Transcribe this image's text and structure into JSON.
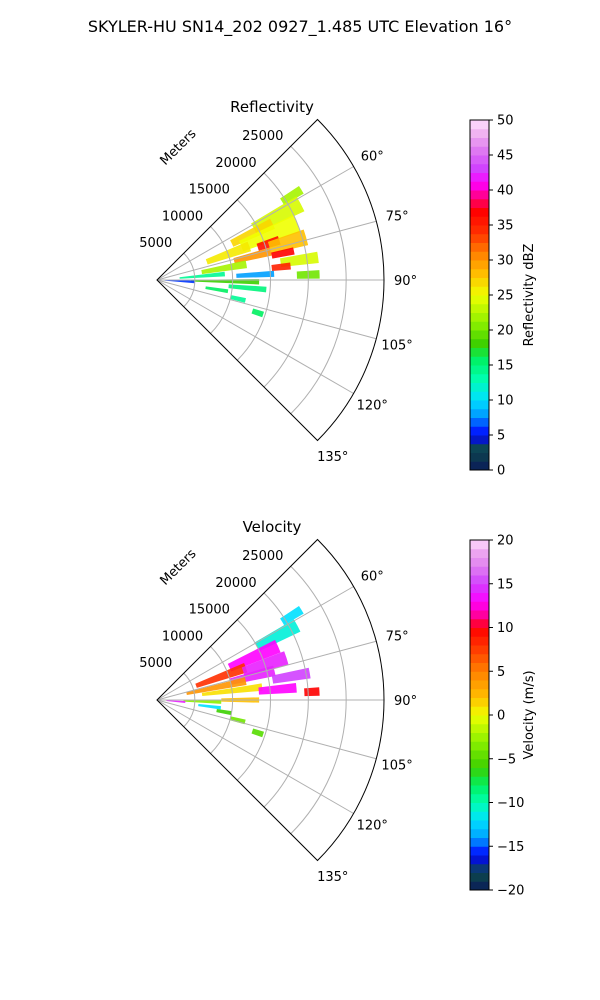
{
  "figure": {
    "title": "SKYLER-HU  SN14_202  0927_1.485 UTC Elevation 16°"
  },
  "chart_data": [
    {
      "type": "polar-sector",
      "title": "Reflectivity",
      "range_label": "Meters",
      "theta_range_deg": [
        45,
        135
      ],
      "theta_ticks": [
        "60°",
        "75°",
        "90°",
        "105°",
        "120°",
        "135°"
      ],
      "theta_tick_values": [
        60,
        75,
        90,
        105,
        120,
        135
      ],
      "r_ticks": [
        "5000",
        "10000",
        "15000",
        "20000",
        "25000"
      ],
      "r_tick_values": [
        5000,
        10000,
        15000,
        20000,
        25000
      ],
      "rlim": [
        0,
        30000
      ],
      "grid": true,
      "colorbar": {
        "label": "Reflectivity dBZ",
        "range": [
          0,
          50
        ],
        "ticks": [
          "0",
          "5",
          "10",
          "15",
          "20",
          "25",
          "30",
          "35",
          "40",
          "45",
          "50"
        ],
        "tick_values": [
          0,
          5,
          10,
          15,
          20,
          25,
          30,
          35,
          40,
          45,
          50
        ],
        "stops": [
          [
            0,
            "#0a1a5a"
          ],
          [
            3,
            "#0d4a4a"
          ],
          [
            5,
            "#0000ff"
          ],
          [
            8,
            "#00a0ff"
          ],
          [
            10,
            "#00e0ff"
          ],
          [
            13,
            "#00ffb0"
          ],
          [
            16,
            "#00f060"
          ],
          [
            18,
            "#3cd000"
          ],
          [
            21,
            "#8cf000"
          ],
          [
            25,
            "#f0ff00"
          ],
          [
            28,
            "#ffc000"
          ],
          [
            31,
            "#ff8000"
          ],
          [
            34,
            "#ff3000"
          ],
          [
            37,
            "#ff0000"
          ],
          [
            39,
            "#ff0080"
          ],
          [
            41,
            "#ff00ff"
          ],
          [
            43,
            "#d040ff"
          ],
          [
            46,
            "#e080f0"
          ],
          [
            48,
            "#f0b0f0"
          ],
          [
            50,
            "#ffe0ff"
          ]
        ]
      },
      "echoes": [
        {
          "az": 58,
          "r": 21000,
          "dr": 3000,
          "daz": 3,
          "value": 22
        },
        {
          "az": 62,
          "r": 18000,
          "dr": 7000,
          "daz": 6,
          "value": 24
        },
        {
          "az": 64,
          "r": 14000,
          "dr": 6000,
          "daz": 5,
          "value": 27
        },
        {
          "az": 68,
          "r": 16000,
          "dr": 8000,
          "daz": 7,
          "value": 25
        },
        {
          "az": 70,
          "r": 10000,
          "dr": 6000,
          "daz": 6,
          "value": 26
        },
        {
          "az": 72,
          "r": 15500,
          "dr": 3000,
          "daz": 4,
          "value": 36
        },
        {
          "az": 74,
          "r": 18000,
          "dr": 5000,
          "daz": 6,
          "value": 28
        },
        {
          "az": 76,
          "r": 13000,
          "dr": 5000,
          "daz": 4,
          "value": 30
        },
        {
          "az": 78,
          "r": 17000,
          "dr": 3000,
          "daz": 3,
          "value": 37
        },
        {
          "az": 80,
          "r": 9000,
          "dr": 6000,
          "daz": 5,
          "value": 22
        },
        {
          "az": 82,
          "r": 19000,
          "dr": 5000,
          "daz": 4,
          "value": 24
        },
        {
          "az": 84,
          "r": 16500,
          "dr": 2500,
          "daz": 3,
          "value": 35
        },
        {
          "az": 85,
          "r": 6000,
          "dr": 6000,
          "daz": 4,
          "value": 14
        },
        {
          "az": 87,
          "r": 13000,
          "dr": 5000,
          "daz": 3,
          "value": 8
        },
        {
          "az": 88,
          "r": 20000,
          "dr": 3000,
          "daz": 3,
          "value": 20
        },
        {
          "az": 91,
          "r": 9000,
          "dr": 9000,
          "daz": 3,
          "value": 18
        },
        {
          "az": 93,
          "r": 3000,
          "dr": 4000,
          "daz": 4,
          "value": 6
        },
        {
          "az": 95,
          "r": 12000,
          "dr": 5000,
          "daz": 3,
          "value": 15
        },
        {
          "az": 99,
          "r": 8000,
          "dr": 3000,
          "daz": 3,
          "value": 16
        },
        {
          "az": 103,
          "r": 11000,
          "dr": 2000,
          "daz": 3,
          "value": 14
        },
        {
          "az": 108,
          "r": 14000,
          "dr": 1500,
          "daz": 3,
          "value": 16
        }
      ]
    },
    {
      "type": "polar-sector",
      "title": "Velocity",
      "range_label": "Meters",
      "theta_range_deg": [
        45,
        135
      ],
      "theta_ticks": [
        "60°",
        "75°",
        "90°",
        "105°",
        "120°",
        "135°"
      ],
      "theta_tick_values": [
        60,
        75,
        90,
        105,
        120,
        135
      ],
      "r_ticks": [
        "5000",
        "10000",
        "15000",
        "20000",
        "25000"
      ],
      "r_tick_values": [
        5000,
        10000,
        15000,
        20000,
        25000
      ],
      "rlim": [
        0,
        30000
      ],
      "grid": true,
      "colorbar": {
        "label": "Velocity (m/s)",
        "range": [
          -20,
          20
        ],
        "ticks": [
          "−20",
          "−15",
          "−10",
          "−5",
          "0",
          "5",
          "10",
          "15",
          "20"
        ],
        "tick_values": [
          -20,
          -15,
          -10,
          -5,
          0,
          5,
          10,
          15,
          20
        ],
        "stops": [
          [
            -20,
            "#0a1a5a"
          ],
          [
            -18,
            "#0d4a4a"
          ],
          [
            -16,
            "#0000ff"
          ],
          [
            -14,
            "#00a0ff"
          ],
          [
            -12,
            "#00e0ff"
          ],
          [
            -10,
            "#00ffb0"
          ],
          [
            -8,
            "#00f060"
          ],
          [
            -6,
            "#3cd000"
          ],
          [
            -3,
            "#8cf000"
          ],
          [
            0,
            "#f0ff00"
          ],
          [
            2,
            "#ffc000"
          ],
          [
            5,
            "#ff8000"
          ],
          [
            8,
            "#ff3000"
          ],
          [
            10,
            "#ff0000"
          ],
          [
            11,
            "#ff0080"
          ],
          [
            13,
            "#ff00ff"
          ],
          [
            15,
            "#d040ff"
          ],
          [
            17,
            "#e080f0"
          ],
          [
            19,
            "#f0b0f0"
          ],
          [
            20,
            "#ffe0ff"
          ]
        ]
      },
      "echoes": [
        {
          "az": 58,
          "r": 21000,
          "dr": 3000,
          "daz": 3,
          "value": -12
        },
        {
          "az": 62,
          "r": 18000,
          "dr": 6000,
          "daz": 5,
          "value": -11
        },
        {
          "az": 66,
          "r": 14000,
          "dr": 7000,
          "daz": 6,
          "value": 13
        },
        {
          "az": 70,
          "r": 9000,
          "dr": 7000,
          "daz": 6,
          "value": 8
        },
        {
          "az": 72,
          "r": 15000,
          "dr": 6000,
          "daz": 6,
          "value": 14
        },
        {
          "az": 76,
          "r": 13000,
          "dr": 6000,
          "daz": 5,
          "value": 14
        },
        {
          "az": 78,
          "r": 8000,
          "dr": 8000,
          "daz": 5,
          "value": 4
        },
        {
          "az": 80,
          "r": 18000,
          "dr": 5000,
          "daz": 4,
          "value": 15
        },
        {
          "az": 83,
          "r": 10000,
          "dr": 8000,
          "daz": 4,
          "value": 1
        },
        {
          "az": 85,
          "r": 16000,
          "dr": 5000,
          "daz": 4,
          "value": 13
        },
        {
          "az": 87,
          "r": 20500,
          "dr": 2000,
          "daz": 3,
          "value": 10
        },
        {
          "az": 90,
          "r": 11000,
          "dr": 5000,
          "daz": 3,
          "value": 2
        },
        {
          "az": 92,
          "r": 6000,
          "dr": 5000,
          "daz": 3,
          "value": -3
        },
        {
          "az": 94,
          "r": 2500,
          "dr": 2500,
          "daz": 4,
          "value": 14
        },
        {
          "az": 97,
          "r": 7000,
          "dr": 3000,
          "daz": 3,
          "value": -12
        },
        {
          "az": 100,
          "r": 9000,
          "dr": 2000,
          "daz": 3,
          "value": -6
        },
        {
          "az": 104,
          "r": 11000,
          "dr": 2000,
          "daz": 3,
          "value": -4
        },
        {
          "az": 108,
          "r": 14000,
          "dr": 1500,
          "daz": 3,
          "value": -5
        }
      ]
    }
  ]
}
